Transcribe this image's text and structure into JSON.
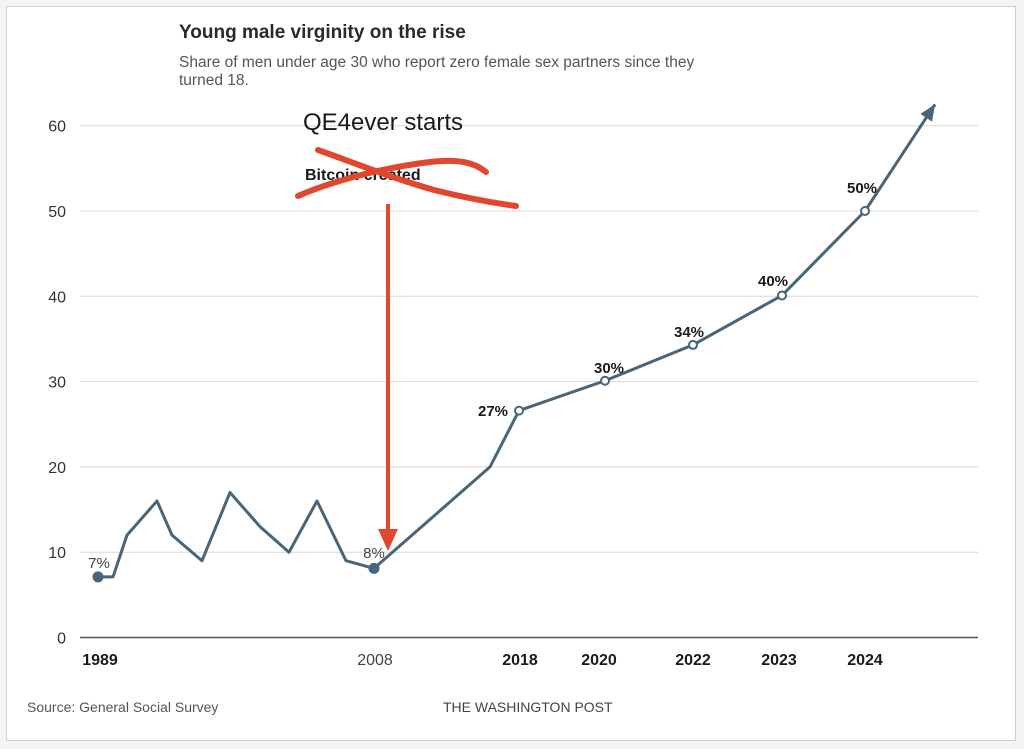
{
  "header": {
    "title": "Young male virginity on the rise",
    "subtitle": "Share of men under age 30 who report zero female sex partners since they turned 18."
  },
  "footer": {
    "source": "Source: General Social Survey",
    "credit": "THE WASHINGTON POST"
  },
  "annotations": {
    "qe_text": "QE4ever starts",
    "crossed_out_text": "Bitcoin created",
    "arrow_color": "#e0472f",
    "scribble_color": "#e0472f"
  },
  "colors": {
    "line": "#4a6478",
    "grid": "#d8d8d8",
    "baseline": "#555555"
  },
  "chart_data": {
    "type": "line",
    "title": "Young male virginity on the rise",
    "subtitle": "Share of men under age 30 who report zero female sex partners since they turned 18.",
    "xlabel": "",
    "ylabel": "",
    "ylim": [
      0,
      60
    ],
    "yticks": [
      0,
      10,
      20,
      30,
      40,
      50,
      60
    ],
    "grid": true,
    "x_tick_labels": [
      "1989",
      "2008",
      "2018",
      "2020",
      "2022",
      "2023",
      "2024"
    ],
    "series": [
      {
        "values": [
          {
            "x": "1989",
            "y": 7.1
          },
          {
            "x": "1990",
            "y": 7.1
          },
          {
            "x": "1991",
            "y": 12
          },
          {
            "x": "1993",
            "y": 16
          },
          {
            "x": "1994",
            "y": 12
          },
          {
            "x": "1996",
            "y": 9
          },
          {
            "x": "1998",
            "y": 17
          },
          {
            "x": "2000",
            "y": 13
          },
          {
            "x": "2002",
            "y": 10
          },
          {
            "x": "2004",
            "y": 16
          },
          {
            "x": "2006",
            "y": 9
          },
          {
            "x": "2008",
            "y": 8.1
          },
          {
            "x": "2016",
            "y": 20
          },
          {
            "x": "2018",
            "y": 26.6
          },
          {
            "x": "2020",
            "y": 30.1
          },
          {
            "x": "2022",
            "y": 34.3
          },
          {
            "x": "2023",
            "y": 40.1
          },
          {
            "x": "2024",
            "y": 50
          },
          {
            "x": "future",
            "y": 62.5
          }
        ]
      }
    ],
    "data_labels": [
      {
        "x": "1989",
        "text": "7%"
      },
      {
        "x": "2008",
        "text": "8%"
      },
      {
        "x": "2018",
        "text": "27%"
      },
      {
        "x": "2020",
        "text": "30%"
      },
      {
        "x": "2022",
        "text": "34%"
      },
      {
        "x": "2023",
        "text": "40%"
      },
      {
        "x": "2024",
        "text": "50%"
      }
    ]
  }
}
